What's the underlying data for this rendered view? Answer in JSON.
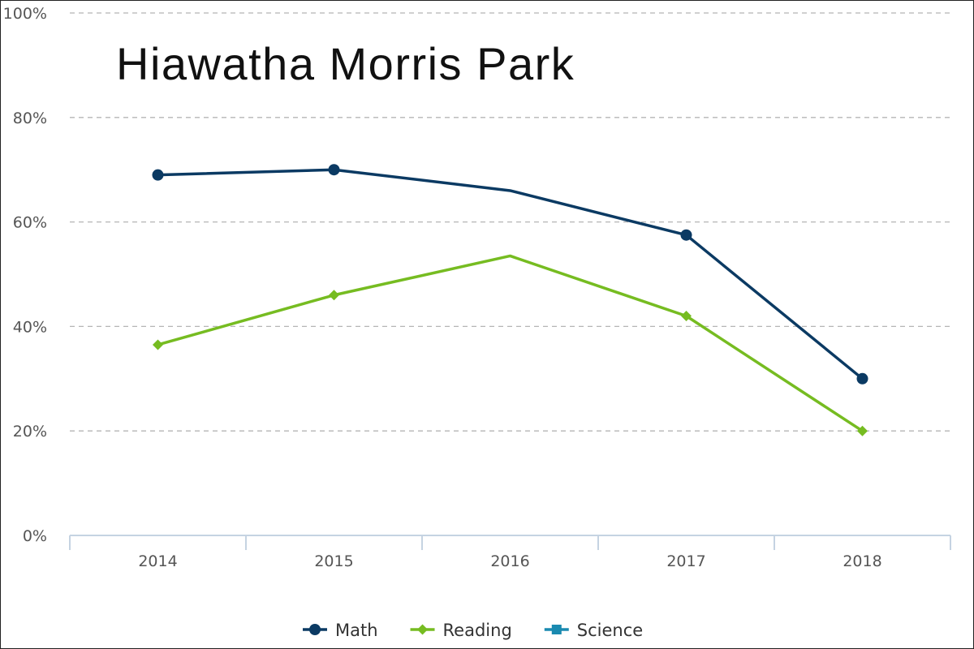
{
  "chart_data": {
    "type": "line",
    "title": "Hiawatha Morris Park",
    "x": [
      "2014",
      "2015",
      "2016",
      "2017",
      "2018"
    ],
    "ylim": [
      0,
      100
    ],
    "y_ticks": [
      "0%",
      "20%",
      "40%",
      "60%",
      "80%",
      "100%"
    ],
    "y_tick_values": [
      0,
      20,
      40,
      60,
      80,
      100
    ],
    "grid": true,
    "legend": "bottom-center",
    "series": [
      {
        "name": "Math",
        "color": "#0b3a63",
        "marker": "circle",
        "values": [
          69,
          70,
          66,
          57.5,
          30
        ],
        "markers_shown": [
          true,
          true,
          false,
          true,
          true
        ]
      },
      {
        "name": "Reading",
        "color": "#76bc21",
        "marker": "diamond",
        "values": [
          36.5,
          46,
          53.5,
          42,
          20
        ],
        "markers_shown": [
          true,
          true,
          false,
          true,
          true
        ]
      },
      {
        "name": "Science",
        "color": "#1a8ab0",
        "marker": "square",
        "values": [
          null,
          null,
          null,
          null,
          null
        ]
      }
    ]
  }
}
